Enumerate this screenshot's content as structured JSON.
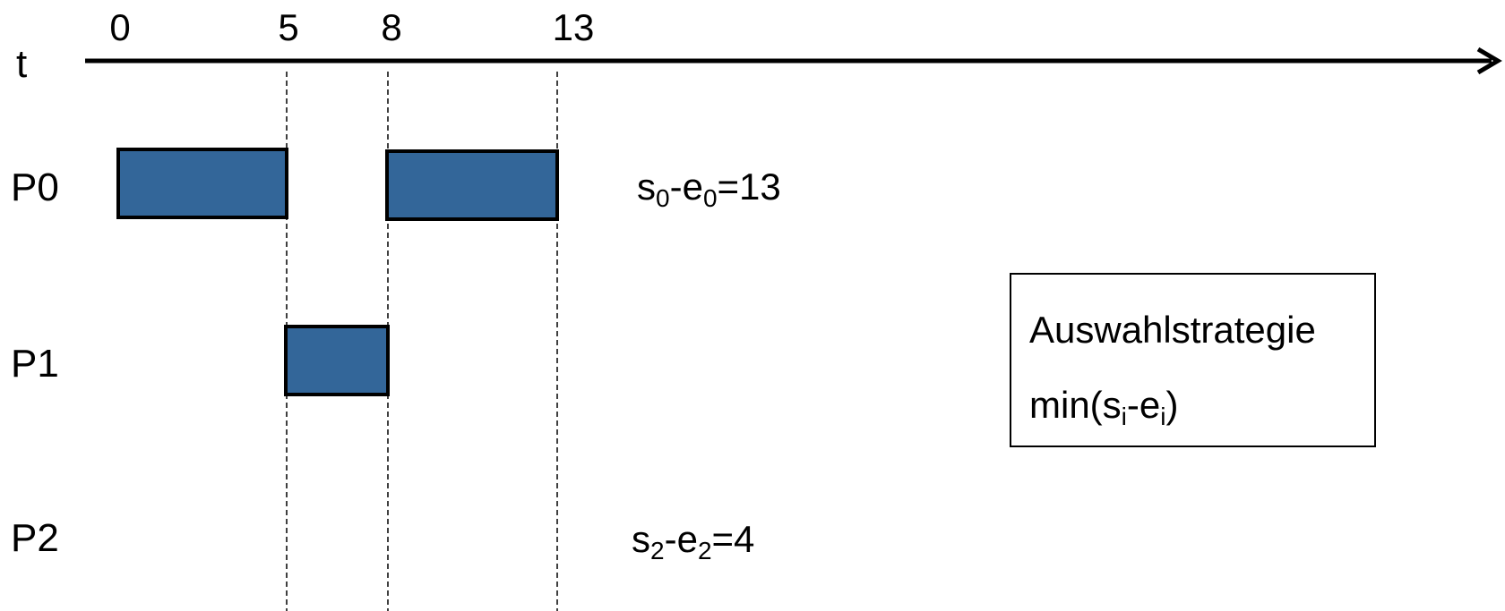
{
  "axis": {
    "label": "t",
    "ticks": [
      "0",
      "5",
      "8",
      "13"
    ]
  },
  "processes": [
    {
      "name": "P0",
      "intervals": [
        [
          0,
          5
        ],
        [
          8,
          13
        ]
      ]
    },
    {
      "name": "P1",
      "intervals": [
        [
          5,
          8
        ]
      ]
    },
    {
      "name": "P2",
      "intervals": []
    }
  ],
  "annotations": {
    "p0": {
      "s": "s",
      "sub1": "0",
      "dash": "-e",
      "sub2": "0",
      "rest": "=13"
    },
    "p2": {
      "s": "s",
      "sub1": "2",
      "dash": "-e",
      "sub2": "2",
      "rest": "=4"
    }
  },
  "legend": {
    "title": "Auswahlstrategie",
    "formula_prefix": "min(s",
    "formula_sub1": "i",
    "formula_mid": "-e",
    "formula_sub2": "i",
    "formula_suffix": ")"
  },
  "colors": {
    "bar_fill": "#336699",
    "line": "#000000"
  }
}
